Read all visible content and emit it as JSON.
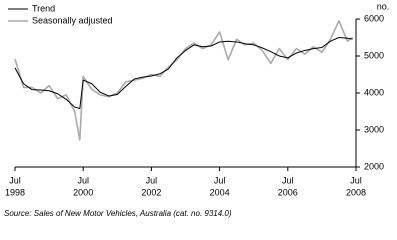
{
  "chart_data": {
    "type": "line",
    "y_label": "no.",
    "source": "Source: Sales of New Motor Vehicles, Australia (cat. no. 9314.0)",
    "x": [
      1998.5,
      1998.75,
      1999,
      1999.25,
      1999.5,
      1999.75,
      2000,
      2000.25,
      2000.4,
      2000.5,
      2000.75,
      2001,
      2001.25,
      2001.5,
      2001.75,
      2002,
      2002.25,
      2002.5,
      2002.75,
      2003,
      2003.25,
      2003.5,
      2003.75,
      2004,
      2004.25,
      2004.5,
      2004.75,
      2005,
      2005.25,
      2005.5,
      2005.75,
      2006,
      2006.25,
      2006.5,
      2006.75,
      2007,
      2007.25,
      2007.5,
      2007.75,
      2008,
      2008.25,
      2008.4
    ],
    "series": [
      {
        "name": "Trend",
        "color": "#000000",
        "width": 1,
        "values": [
          4680,
          4250,
          4090,
          4080,
          4060,
          3980,
          3830,
          3620,
          3580,
          4350,
          4250,
          4020,
          3920,
          3960,
          4180,
          4380,
          4430,
          4460,
          4520,
          4650,
          4950,
          5150,
          5300,
          5250,
          5270,
          5380,
          5400,
          5380,
          5330,
          5300,
          5220,
          5120,
          5000,
          4950,
          5080,
          5150,
          5200,
          5230,
          5400,
          5500,
          5480,
          5460
        ]
      },
      {
        "name": "Seasonally adjusted",
        "color": "#aaaaaa",
        "width": 1.6,
        "values": [
          4920,
          4150,
          4150,
          4000,
          4200,
          3850,
          3950,
          3500,
          2730,
          4450,
          4100,
          3950,
          3900,
          4000,
          4300,
          4350,
          4400,
          4500,
          4450,
          4700,
          4900,
          5200,
          5350,
          5200,
          5300,
          5650,
          4900,
          5450,
          5300,
          5350,
          5150,
          4800,
          5200,
          4900,
          5200,
          5050,
          5250,
          5100,
          5450,
          5950,
          5400,
          5500
        ]
      }
    ],
    "xlim": [
      1998.5,
      2008.5
    ],
    "xticks": [
      {
        "value": 1998.5,
        "label": "Jul",
        "year": "1998"
      },
      {
        "value": 2000.5,
        "label": "Jul",
        "year": "2000"
      },
      {
        "value": 2002.5,
        "label": "Jul",
        "year": "2002"
      },
      {
        "value": 2004.5,
        "label": "Jul",
        "year": "2004"
      },
      {
        "value": 2006.5,
        "label": "Jul",
        "year": "2006"
      },
      {
        "value": 2008.5,
        "label": "Jul",
        "year": "2008"
      }
    ],
    "ylim": [
      2000,
      6000
    ],
    "yticks": [
      2000,
      3000,
      4000,
      5000,
      6000
    ],
    "legend": "top-left"
  }
}
